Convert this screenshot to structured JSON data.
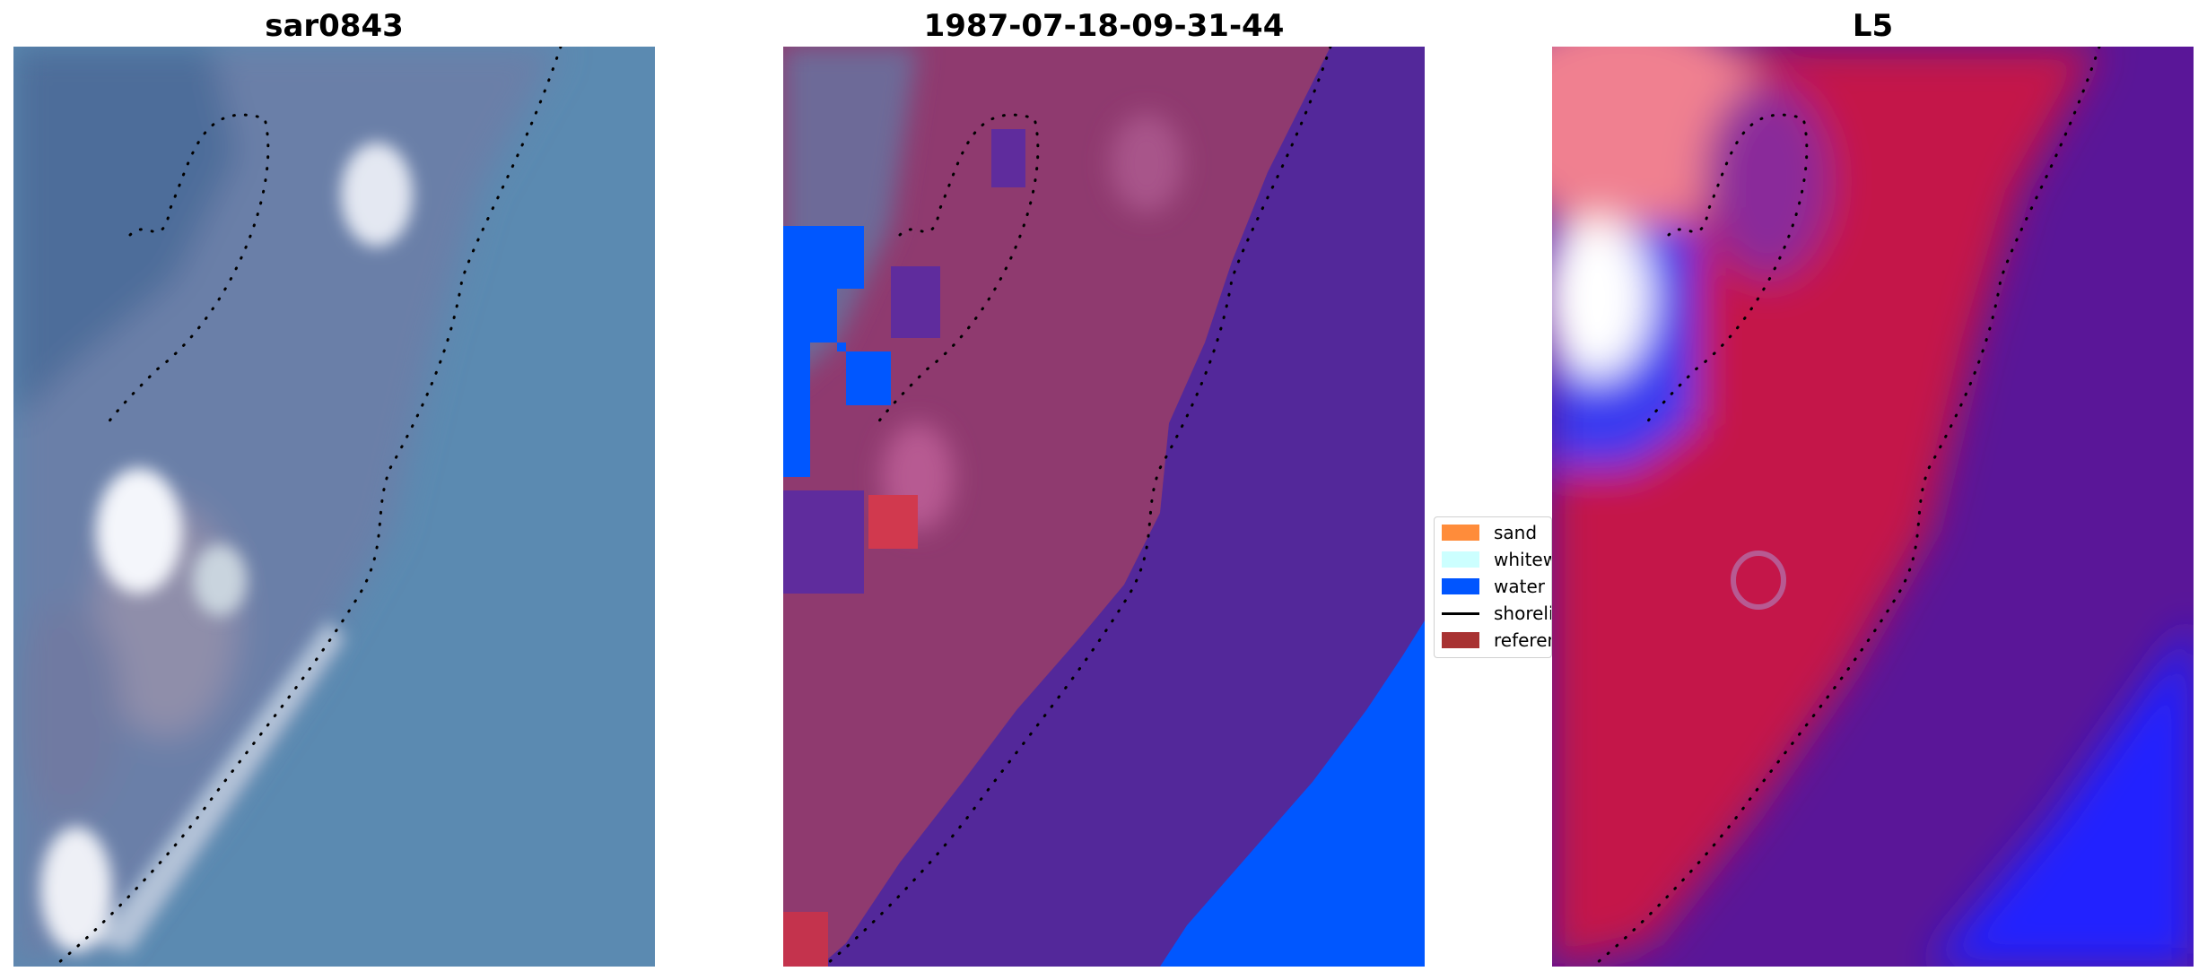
{
  "panels": [
    {
      "title": "sar0843"
    },
    {
      "title": "1987-07-18-09-31-44"
    },
    {
      "title": "L5"
    }
  ],
  "legend": {
    "items": [
      {
        "label": "sand",
        "color": "#ff8c3a",
        "kind": "patch"
      },
      {
        "label": "whitewater",
        "color": "#ccffff",
        "kind": "patch"
      },
      {
        "label": "water",
        "color": "#0055ff",
        "kind": "patch"
      },
      {
        "label": "shoreline",
        "color": "#000000",
        "kind": "line"
      },
      {
        "label": "reference",
        "color": "#a83232",
        "kind": "patch"
      }
    ]
  },
  "colors": {
    "satellite_sea": "#5b8ab1",
    "classified_land": "#8f3a6f",
    "classified_sea": "#53289a",
    "classified_water": "#0057ff",
    "index_red": "#c4134a",
    "index_purple": "#5a1698",
    "index_blue": "#2020ff"
  }
}
